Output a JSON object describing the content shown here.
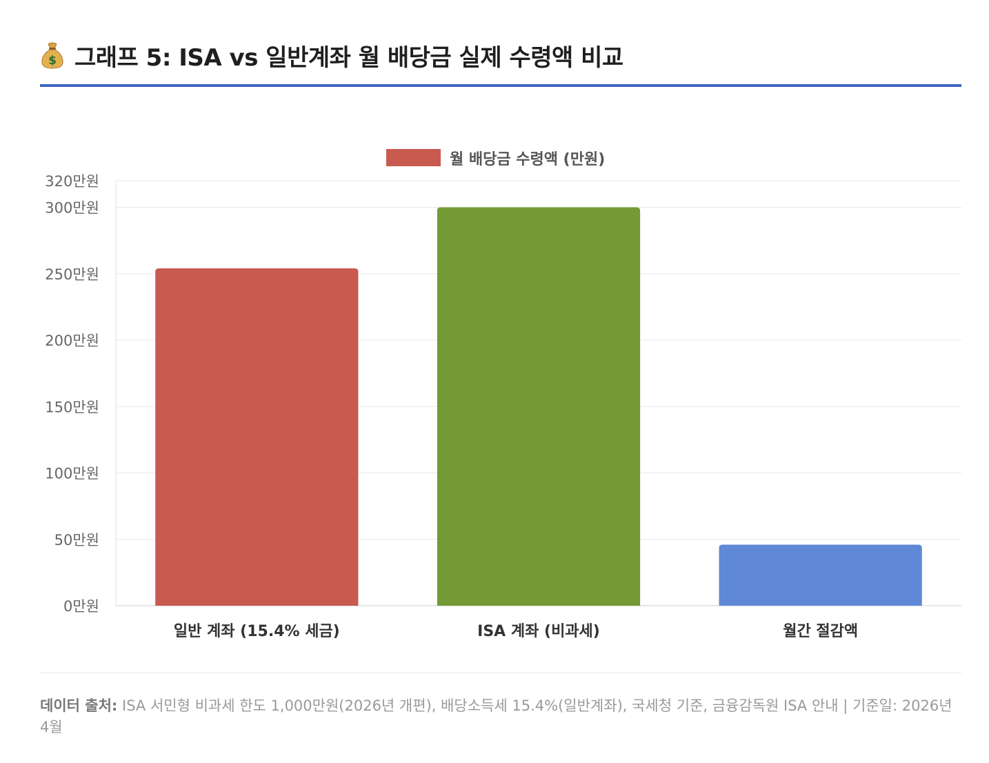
{
  "header": {
    "icon": "money-bag-icon",
    "title": "그래프 5: ISA vs 일반계좌 월 배당금 실제 수령액 비교"
  },
  "chart_data": {
    "type": "bar",
    "categories": [
      "일반 계좌 (15.4% 세금)",
      "ISA 계좌 (비과세)",
      "월간 절감액"
    ],
    "series": [
      {
        "name": "월 배당금 수령액 (만원)",
        "values": [
          254,
          300,
          46
        ],
        "colors": [
          "#c85a50",
          "#739a35",
          "#5f88d6"
        ]
      }
    ],
    "legend_color": "#c85a50",
    "y_ticks": [
      0,
      50,
      100,
      150,
      200,
      250,
      300,
      320
    ],
    "y_tick_labels": [
      "0만원",
      "50만원",
      "100만원",
      "150만원",
      "200만원",
      "250만원",
      "300만원",
      "320만원"
    ],
    "ylim": [
      0,
      320
    ],
    "grid": true,
    "legend_position": "top"
  },
  "footer": {
    "source_label": "데이터 출처:",
    "source_text": "ISA 서민형 비과세 한도 1,000만원(2026년 개편), 배당소득세 15.4%(일반계좌), 국세청 기준, 금융감독원 ISA 안내 | 기준일: 2026년 4월"
  }
}
